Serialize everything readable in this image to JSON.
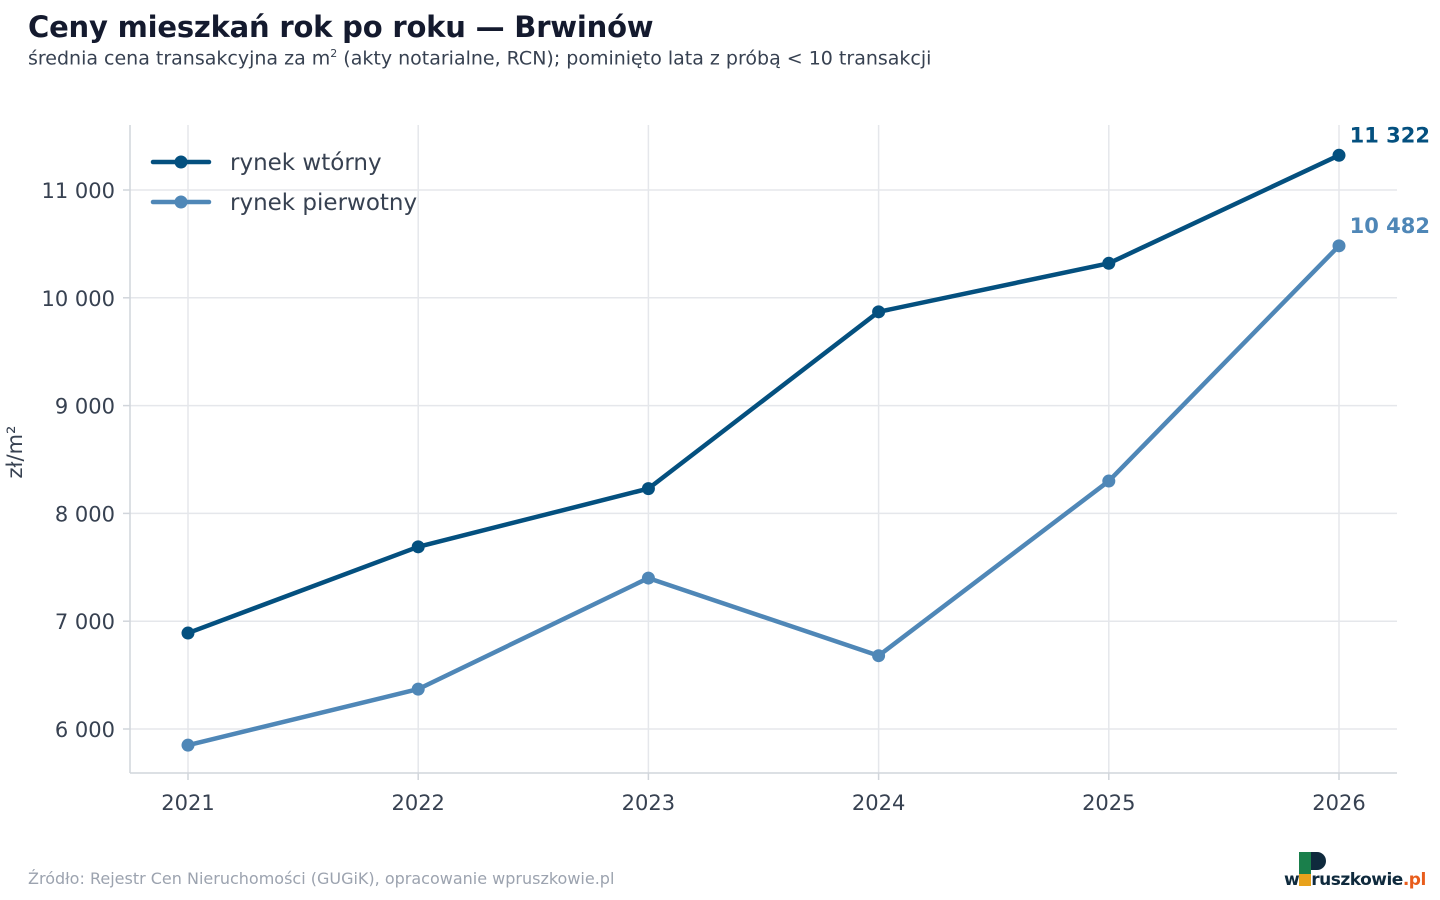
{
  "header": {
    "title": "Ceny mieszkań rok po roku — Brwinów",
    "subtitle_pre": "średnia cena transakcyjna za m",
    "subtitle_sup": "2",
    "subtitle_post": " (akty notarialne, RCN); pominięto lata z próbą < 10 transakcji"
  },
  "footer": {
    "source": "Źródło: Rejestr Cen Nieruchomości (GUGiK), opracowanie wpruszkowie.pl"
  },
  "logo": {
    "pre": "w",
    "main": "ruszkowie",
    "suffix": ".pl",
    "colors": {
      "green": "#1a7f4b",
      "dark": "#0f2a3d",
      "orange": "#e85d1c"
    }
  },
  "chart_data": {
    "type": "line",
    "x": [
      "2021",
      "2022",
      "2023",
      "2024",
      "2025",
      "2026"
    ],
    "ylabel": "zł/m²",
    "ylim": [
      5600,
      11600
    ],
    "yticks": [
      6000,
      7000,
      8000,
      9000,
      10000,
      11000
    ],
    "ytick_labels": [
      "6 000",
      "7 000",
      "8 000",
      "9 000",
      "10 000",
      "11 000"
    ],
    "grid": true,
    "legend_position": "top-left",
    "series": [
      {
        "name": "rynek wtórny",
        "color": "#04507f",
        "values": [
          6890,
          7690,
          8230,
          9870,
          10320,
          11322
        ],
        "end_label": "11 322"
      },
      {
        "name": "rynek pierwotny",
        "color": "#4f87b7",
        "values": [
          5850,
          6370,
          7400,
          6680,
          8300,
          10482
        ],
        "end_label": "10 482"
      }
    ]
  }
}
